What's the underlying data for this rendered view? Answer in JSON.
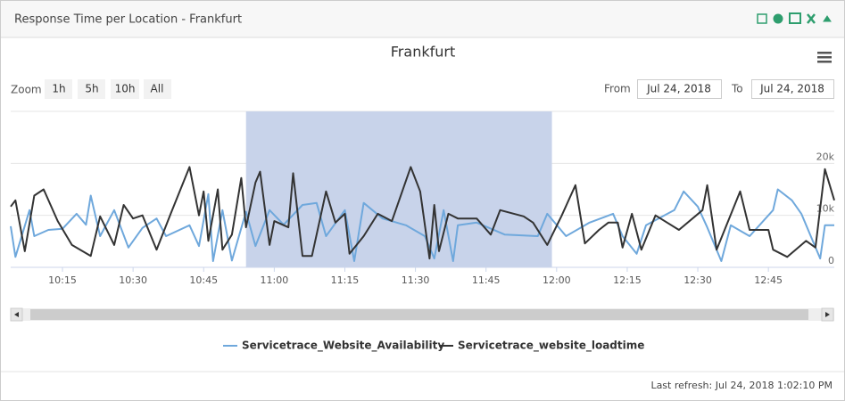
{
  "widget": {
    "title": "Response Time per Location - Frankfurt",
    "footer": "Last refresh: Jul 24, 2018 1:02:10 PM"
  },
  "controls": {
    "zoom_label": "Zoom",
    "zoom_buttons": [
      "1h",
      "5h",
      "10h",
      "All"
    ],
    "from_label": "From",
    "from_date": "Jul 24, 2018",
    "to_label": "To",
    "to_date": "Jul 24, 2018"
  },
  "chart_data": {
    "type": "line",
    "title": "Frankfurt",
    "xlim": [
      "10:04",
      "12:59"
    ],
    "xticks": [
      "10:15",
      "10:30",
      "10:45",
      "11:00",
      "11:15",
      "11:30",
      "11:45",
      "12:00",
      "12:15",
      "12:30",
      "12:45"
    ],
    "ylim": [
      0,
      30000
    ],
    "yticks": [
      0,
      {
        "value": 10000,
        "label": "10k"
      },
      {
        "value": 20000,
        "label": "20k"
      }
    ],
    "grid": true,
    "highlight": {
      "from": "10:54",
      "to": "11:59",
      "color": "#c8d3ea"
    },
    "series": [
      {
        "name": "Servicetrace_Website_Availability",
        "color": "#6fa8dc",
        "x": [
          "10:04",
          "10:05",
          "10:08",
          "10:09",
          "10:12",
          "10:15",
          "10:18",
          "10:20",
          "10:21",
          "10:23",
          "10:26",
          "10:29",
          "10:32",
          "10:35",
          "10:37",
          "10:42",
          "10:44",
          "10:46",
          "10:47",
          "10:49",
          "10:51",
          "10:54",
          "10:56",
          "10:59",
          "11:02",
          "11:06",
          "11:09",
          "11:11",
          "11:15",
          "11:17",
          "11:19",
          "11:23",
          "11:28",
          "11:32",
          "11:34",
          "11:36",
          "11:38",
          "11:39",
          "11:43",
          "11:49",
          "11:56",
          "11:58",
          "12:02",
          "12:07",
          "12:12",
          "12:14",
          "12:17",
          "12:19",
          "12:25",
          "12:27",
          "12:30",
          "12:32",
          "12:35",
          "12:37",
          "12:41",
          "12:46",
          "12:47",
          "12:50",
          "12:52",
          "12:56",
          "12:57",
          "12:59"
        ],
        "values": [
          7900,
          2000,
          11000,
          6000,
          7200,
          7400,
          10300,
          8200,
          13800,
          6000,
          11000,
          3800,
          7600,
          9400,
          6000,
          8100,
          4100,
          14100,
          1200,
          11000,
          1300,
          10700,
          4100,
          11000,
          8200,
          12000,
          12400,
          6000,
          11000,
          1200,
          12400,
          9400,
          8100,
          6000,
          1700,
          11000,
          1200,
          8100,
          8600,
          6300,
          6000,
          10300,
          6000,
          8600,
          10300,
          6000,
          2600,
          8100,
          11000,
          14600,
          11700,
          7700,
          1200,
          8100,
          6000,
          11000,
          15000,
          12900,
          10300,
          1700,
          8100,
          8100
        ]
      },
      {
        "name": "Servicetrace_website_loadtime",
        "color": "#333333",
        "x": [
          "10:04",
          "10:05",
          "10:07",
          "10:09",
          "10:11",
          "10:14",
          "10:17",
          "10:21",
          "10:23",
          "10:26",
          "10:28",
          "10:30",
          "10:32",
          "10:35",
          "10:38",
          "10:42",
          "10:44",
          "10:45",
          "10:46",
          "10:48",
          "10:49",
          "10:51",
          "10:53",
          "10:54",
          "10:56",
          "10:57",
          "10:59",
          "11:00",
          "11:03",
          "11:04",
          "11:06",
          "11:08",
          "11:11",
          "11:13",
          "11:15",
          "11:16",
          "11:19",
          "11:22",
          "11:25",
          "11:29",
          "11:31",
          "11:33",
          "11:34",
          "11:35",
          "11:37",
          "11:39",
          "11:43",
          "11:46",
          "11:48",
          "11:53",
          "11:55",
          "11:58",
          "12:01",
          "12:04",
          "12:06",
          "12:09",
          "12:11",
          "12:13",
          "12:14",
          "12:16",
          "12:18",
          "12:21",
          "12:26",
          "12:31",
          "12:32",
          "12:34",
          "12:39",
          "12:41",
          "12:45",
          "12:46",
          "12:49",
          "12:53",
          "12:55",
          "12:57",
          "12:59"
        ],
        "values": [
          11700,
          12900,
          3100,
          13800,
          15000,
          8900,
          4300,
          2200,
          9800,
          4300,
          12000,
          9400,
          10000,
          3400,
          10300,
          19300,
          10000,
          14600,
          5100,
          15000,
          3400,
          6300,
          17200,
          7700,
          16300,
          18400,
          4300,
          8900,
          7700,
          18100,
          2200,
          2200,
          14600,
          8600,
          10300,
          2600,
          6000,
          10300,
          8900,
          19300,
          14600,
          1700,
          12000,
          3100,
          10300,
          9400,
          9400,
          6300,
          11000,
          9800,
          8600,
          4300,
          9800,
          15800,
          4600,
          7200,
          8600,
          8600,
          3800,
          10300,
          3400,
          10000,
          7200,
          11000,
          15800,
          3400,
          14600,
          7200,
          7200,
          3400,
          2000,
          5100,
          3800,
          18900,
          12900
        ]
      }
    ]
  }
}
